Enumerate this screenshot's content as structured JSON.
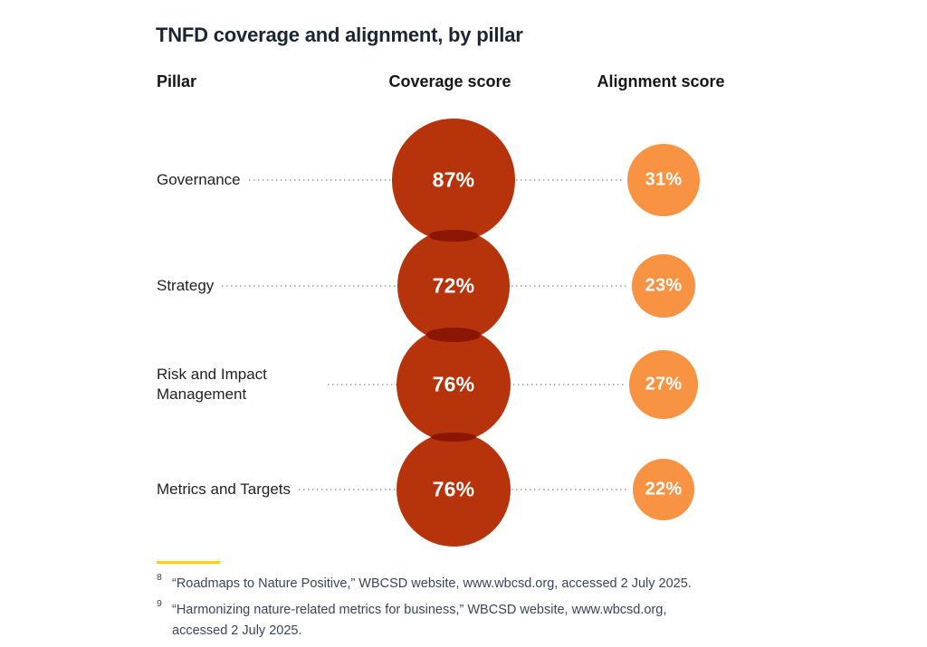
{
  "title": "TNFD coverage and alignment, by pillar",
  "columns": {
    "pillar": "Pillar",
    "coverage": "Coverage score",
    "alignment": "Alignment score"
  },
  "chart_data": {
    "type": "bubble",
    "title": "TNFD coverage and alignment, by pillar",
    "categories": [
      "Governance",
      "Strategy",
      "Risk and Impact Management",
      "Metrics and Targets"
    ],
    "series": [
      {
        "name": "Coverage score",
        "values": [
          87,
          72,
          76,
          76
        ],
        "unit": "%",
        "color": "#B6330C",
        "overlap_color": "#8C1604"
      },
      {
        "name": "Alignment score",
        "values": [
          31,
          23,
          27,
          22
        ],
        "unit": "%",
        "color": "#F79342"
      }
    ],
    "sizing": "area-proportional",
    "value_labels": [
      "87%",
      "72%",
      "76%",
      "76%",
      "31%",
      "23%",
      "27%",
      "22%"
    ],
    "legend": "none",
    "grid": "dotted leader lines per row"
  },
  "colors": {
    "coverage_bubble": "#B6330C",
    "coverage_overlap": "#8C1604",
    "alignment_bubble": "#F79342",
    "title_text": "#1B2533",
    "header_text": "#161616",
    "label_text": "#222222",
    "footnote_text": "#39455A",
    "leader_dots": "#b3b3b3",
    "divider_yellow": "#FFD200",
    "background": "#ffffff"
  },
  "footnotes": [
    {
      "marker": "8",
      "text": "“Roadmaps to Nature Positive,” WBCSD website, www.wbcsd.org, accessed 2 July 2025."
    },
    {
      "marker": "9",
      "text": "“Harmonizing nature-related metrics for business,” WBCSD website, www.wbcsd.org, accessed 2 July 2025."
    }
  ]
}
